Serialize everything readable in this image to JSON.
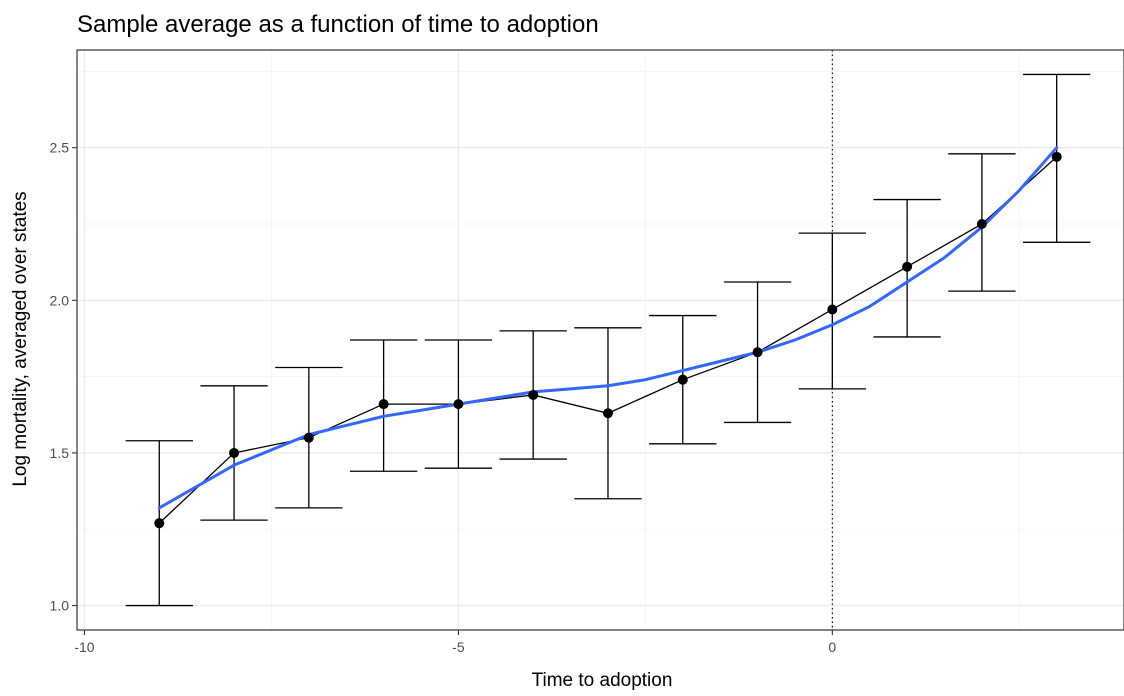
{
  "chart_data": {
    "type": "line",
    "title": "Sample average as a function of time to adoption",
    "xlabel": "Time to adoption",
    "ylabel": "Log mortality, averaged over states",
    "xlim": [
      -10.1,
      3.9
    ],
    "ylim": [
      0.92,
      2.82
    ],
    "x_ticks": [
      -10,
      -5,
      0
    ],
    "x_tick_labels": [
      "-10",
      "-5",
      "0"
    ],
    "y_ticks": [
      1.0,
      1.5,
      2.0,
      2.5
    ],
    "y_tick_labels": [
      "1.0",
      "1.5",
      "2.0",
      "2.5"
    ],
    "grid": true,
    "vertical_reference_line_x": 0,
    "series": [
      {
        "kind": "mean_with_error_bars",
        "color": "#000000",
        "x": [
          -9,
          -8,
          -7,
          -6,
          -5,
          -4,
          -3,
          -2,
          -1,
          0,
          1,
          2,
          3
        ],
        "y": [
          1.27,
          1.5,
          1.55,
          1.66,
          1.66,
          1.69,
          1.63,
          1.74,
          1.83,
          1.97,
          2.11,
          2.25,
          2.47
        ],
        "ymin": [
          1.0,
          1.28,
          1.32,
          1.44,
          1.45,
          1.48,
          1.35,
          1.53,
          1.6,
          1.71,
          1.88,
          2.03,
          2.19
        ],
        "ymax": [
          1.54,
          1.72,
          1.78,
          1.87,
          1.87,
          1.9,
          1.91,
          1.95,
          2.06,
          2.22,
          2.33,
          2.48,
          2.74
        ]
      },
      {
        "kind": "smooth_fit",
        "color": "#3366ff",
        "x": [
          -9,
          -8.5,
          -8,
          -7.5,
          -7,
          -6.5,
          -6,
          -5.5,
          -5,
          -4.5,
          -4,
          -3.5,
          -3,
          -2.5,
          -2,
          -1.5,
          -1,
          -0.5,
          0,
          0.5,
          1,
          1.5,
          2,
          2.5,
          3
        ],
        "y": [
          1.32,
          1.39,
          1.46,
          1.51,
          1.56,
          1.59,
          1.62,
          1.64,
          1.66,
          1.68,
          1.7,
          1.71,
          1.72,
          1.74,
          1.77,
          1.8,
          1.83,
          1.87,
          1.92,
          1.98,
          2.06,
          2.14,
          2.24,
          2.36,
          2.5
        ]
      }
    ]
  }
}
